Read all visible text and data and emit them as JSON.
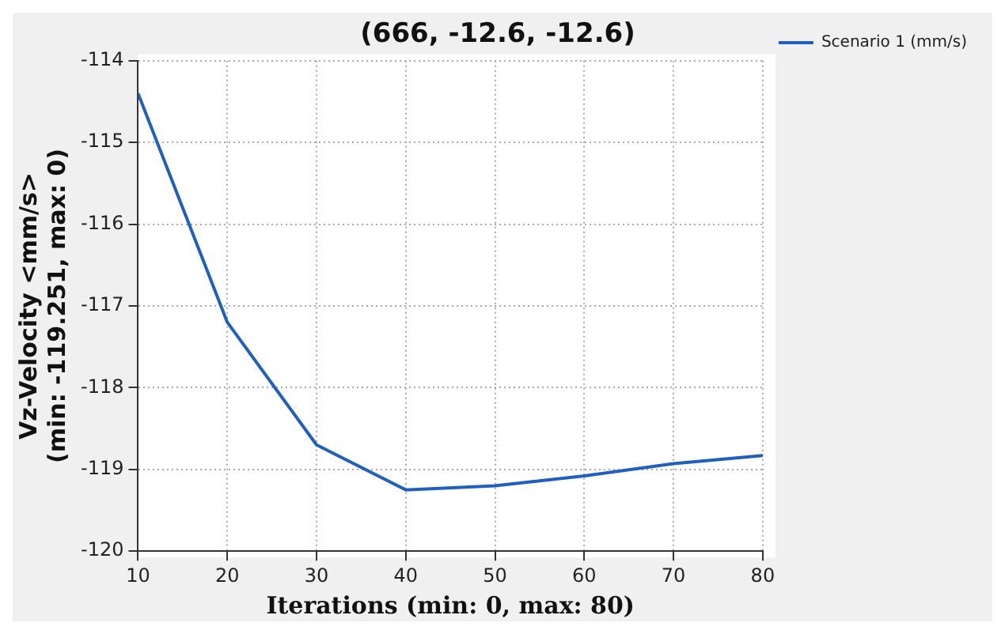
{
  "chart_data": {
    "type": "line",
    "title": "(666, -12.6, -12.6)",
    "xlabel": "Iterations (min: 0, max: 80)",
    "ylabel": "Vz-Velocity <mm/s> (min: -119.251, max: 0)",
    "x": [
      10,
      20,
      30,
      40,
      50,
      60,
      70,
      80
    ],
    "series": [
      {
        "name": "Scenario 1 (mm/s)",
        "color": "#1f5fbf",
        "values": [
          -114.4,
          -117.2,
          -118.7,
          -119.25,
          -119.2,
          -119.08,
          -118.93,
          -118.83
        ]
      }
    ],
    "xlim": [
      10,
      80
    ],
    "xticks": [
      10,
      20,
      30,
      40,
      50,
      60,
      70,
      80
    ],
    "ylim": [
      -120,
      -114
    ],
    "yticks": [
      -120,
      -119,
      -118,
      -117,
      -116,
      -115,
      -114
    ],
    "grid": true,
    "legend": "top right",
    "marker": "none",
    "line_style": "solid"
  }
}
